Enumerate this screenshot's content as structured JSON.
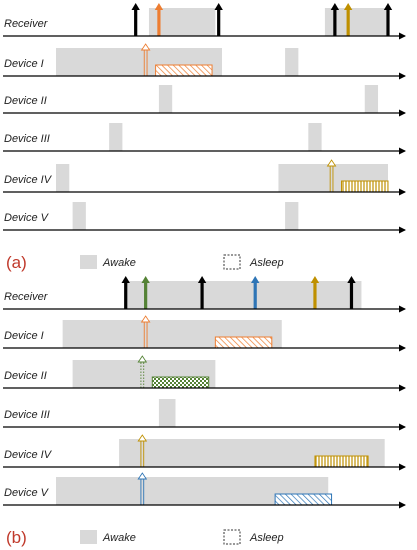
{
  "colors": {
    "awake": "#d9d9d9",
    "axis": "#000000",
    "orange": "#ed7d31",
    "green": "#548235",
    "yellow": "#bf9000",
    "blue": "#2e75b6",
    "black": "#000000",
    "panel_label": "#c0392b"
  },
  "legend": {
    "awake": "Awake",
    "asleep": "Asleep"
  },
  "panels": [
    {
      "label": "(a)",
      "rows": [
        {
          "name": "Receiver",
          "awake": [
            [
              0.28,
              0.48
            ],
            [
              0.81,
              1.0
            ]
          ],
          "arrows": [
            {
              "t": 0.24,
              "kind": "rx"
            },
            {
              "t": 0.31,
              "kind": "rx",
              "color": "orange"
            },
            {
              "t": 0.49,
              "kind": "rx"
            },
            {
              "t": 0.84,
              "kind": "rx"
            },
            {
              "t": 0.88,
              "kind": "rx",
              "color": "yellow"
            },
            {
              "t": 1.0,
              "kind": "rx"
            }
          ],
          "packets": []
        },
        {
          "name": "Device I",
          "awake": [
            [
              0.0,
              0.5
            ],
            [
              0.69,
              0.73
            ]
          ],
          "arrows": [
            {
              "t": 0.27,
              "kind": "tx",
              "color": "orange"
            }
          ],
          "packets": [
            {
              "s": 0.3,
              "e": 0.47,
              "color": "orange",
              "pattern": "diag"
            }
          ]
        },
        {
          "name": "Device II",
          "awake": [
            [
              0.31,
              0.35
            ],
            [
              0.93,
              0.97
            ]
          ],
          "arrows": [],
          "packets": []
        },
        {
          "name": "Device III",
          "awake": [
            [
              0.16,
              0.2
            ],
            [
              0.76,
              0.8
            ]
          ],
          "arrows": [],
          "packets": []
        },
        {
          "name": "Device IV",
          "awake": [
            [
              0.0,
              0.04
            ],
            [
              0.67,
              1.0
            ]
          ],
          "arrows": [
            {
              "t": 0.83,
              "kind": "tx",
              "color": "yellow"
            }
          ],
          "packets": [
            {
              "s": 0.86,
              "e": 1.0,
              "color": "yellow",
              "pattern": "vert"
            }
          ]
        },
        {
          "name": "Device V",
          "awake": [
            [
              0.05,
              0.09
            ],
            [
              0.69,
              0.73
            ]
          ],
          "arrows": [],
          "packets": []
        }
      ]
    },
    {
      "label": "(b)",
      "rows": [
        {
          "name": "Receiver",
          "awake": [
            [
              0.21,
              0.92
            ]
          ],
          "arrows": [
            {
              "t": 0.21,
              "kind": "rx"
            },
            {
              "t": 0.27,
              "kind": "rx",
              "color": "green"
            },
            {
              "t": 0.44,
              "kind": "rx"
            },
            {
              "t": 0.6,
              "kind": "rx",
              "color": "blue"
            },
            {
              "t": 0.78,
              "kind": "rx",
              "color": "yellow"
            },
            {
              "t": 0.89,
              "kind": "rx"
            }
          ],
          "packets": []
        },
        {
          "name": "Device I",
          "awake": [
            [
              0.02,
              0.68
            ]
          ],
          "arrows": [
            {
              "t": 0.27,
              "kind": "tx",
              "color": "orange"
            }
          ],
          "packets": [
            {
              "s": 0.48,
              "e": 0.65,
              "color": "orange",
              "pattern": "diag"
            }
          ]
        },
        {
          "name": "Device II",
          "awake": [
            [
              0.05,
              0.48
            ]
          ],
          "arrows": [
            {
              "t": 0.26,
              "kind": "tx",
              "color": "green",
              "dotted": true
            }
          ],
          "packets": [
            {
              "s": 0.29,
              "e": 0.46,
              "color": "green",
              "pattern": "check"
            }
          ]
        },
        {
          "name": "Device III",
          "awake": [
            [
              0.31,
              0.36
            ]
          ],
          "arrows": [],
          "packets": []
        },
        {
          "name": "Device IV",
          "awake": [
            [
              0.19,
              0.99
            ]
          ],
          "arrows": [
            {
              "t": 0.26,
              "kind": "tx",
              "color": "yellow"
            }
          ],
          "packets": [
            {
              "s": 0.78,
              "e": 0.94,
              "color": "yellow",
              "pattern": "vert"
            }
          ]
        },
        {
          "name": "Device V",
          "awake": [
            [
              0.0,
              0.82
            ]
          ],
          "arrows": [
            {
              "t": 0.26,
              "kind": "tx",
              "color": "blue"
            }
          ],
          "packets": [
            {
              "s": 0.66,
              "e": 0.83,
              "color": "blue",
              "pattern": "diag"
            }
          ]
        }
      ]
    }
  ]
}
